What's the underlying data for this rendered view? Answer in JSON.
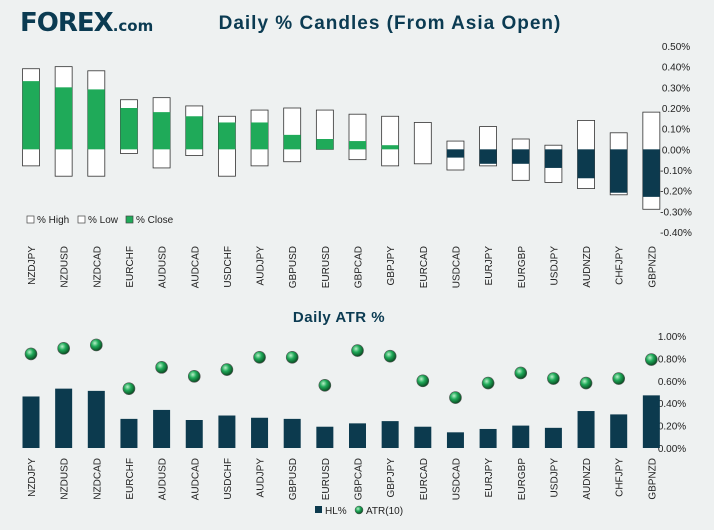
{
  "brand": {
    "name": "FOREX",
    "suffix": ".com",
    "color": "#0b3b52",
    "accent": "#2aa84a"
  },
  "chart_data": [
    {
      "type": "candlestick",
      "title": "Daily % Candles (From Asia Open)",
      "categories": [
        "NZDJPY",
        "NZDUSD",
        "NZDCAD",
        "EURCHF",
        "AUDUSD",
        "AUDCAD",
        "USDCHF",
        "AUDJPY",
        "GBPUSD",
        "EURUSD",
        "GBPCAD",
        "GBPJPY",
        "EURCAD",
        "USDCAD",
        "EURJPY",
        "EURGBP",
        "USDJPY",
        "AUDNZD",
        "CHFJPY",
        "GBPNZD"
      ],
      "series": [
        {
          "name": "% High",
          "values": [
            0.39,
            0.4,
            0.38,
            0.24,
            0.25,
            0.21,
            0.16,
            0.19,
            0.2,
            0.19,
            0.17,
            0.16,
            0.13,
            0.04,
            0.11,
            0.05,
            0.02,
            0.14,
            0.08,
            0.18
          ]
        },
        {
          "name": "% Low",
          "values": [
            -0.08,
            -0.13,
            -0.13,
            -0.02,
            -0.09,
            -0.03,
            -0.13,
            -0.08,
            -0.06,
            0.0,
            -0.05,
            -0.08,
            -0.07,
            -0.1,
            -0.08,
            -0.15,
            -0.16,
            -0.19,
            -0.22,
            -0.29
          ]
        },
        {
          "name": "% Close",
          "values": [
            0.33,
            0.3,
            0.29,
            0.2,
            0.18,
            0.16,
            0.13,
            0.13,
            0.07,
            0.05,
            0.04,
            0.02,
            0.0,
            -0.04,
            -0.07,
            -0.07,
            -0.09,
            -0.14,
            -0.21,
            -0.23
          ]
        }
      ],
      "y_ticks": [
        "0.50%",
        "0.40%",
        "0.30%",
        "0.20%",
        "0.10%",
        "0.00%",
        "-0.10%",
        "-0.20%",
        "-0.30%",
        "-0.40%"
      ],
      "ylim": [
        -0.4,
        0.5
      ],
      "legend": [
        "% High",
        "% Low",
        "% Close"
      ],
      "legend_position": "bottom-left",
      "colors": {
        "positive": "#1faa59",
        "negative": "#0c3a4e",
        "range": "#ffffff",
        "outline": "#333333"
      }
    },
    {
      "type": "bar+scatter",
      "title": "Daily ATR %",
      "categories": [
        "NZDJPY",
        "NZDUSD",
        "NZDCAD",
        "EURCHF",
        "AUDUSD",
        "AUDCAD",
        "USDCHF",
        "AUDJPY",
        "GBPUSD",
        "EURUSD",
        "GBPCAD",
        "GBPJPY",
        "EURCAD",
        "USDCAD",
        "EURJPY",
        "EURGBP",
        "USDJPY",
        "AUDNZD",
        "CHFJPY",
        "GBPNZD"
      ],
      "series": [
        {
          "name": "HL%",
          "type": "bar",
          "values": [
            0.46,
            0.53,
            0.51,
            0.26,
            0.34,
            0.25,
            0.29,
            0.27,
            0.26,
            0.19,
            0.22,
            0.24,
            0.19,
            0.14,
            0.17,
            0.2,
            0.18,
            0.33,
            0.3,
            0.47
          ]
        },
        {
          "name": "ATR(10)",
          "type": "scatter",
          "values": [
            0.84,
            0.89,
            0.92,
            0.53,
            0.72,
            0.64,
            0.7,
            0.81,
            0.81,
            0.56,
            0.87,
            0.82,
            0.6,
            0.45,
            0.58,
            0.67,
            0.62,
            0.58,
            0.62,
            0.79
          ]
        }
      ],
      "y_ticks": [
        "1.00%",
        "0.80%",
        "0.60%",
        "0.40%",
        "0.20%",
        "0.00%"
      ],
      "ylim": [
        0,
        1.0
      ],
      "legend": [
        "HL%",
        "ATR(10)"
      ],
      "legend_position": "bottom-center",
      "colors": {
        "bar": "#0c3a4e",
        "dot": "#1faa59"
      }
    }
  ]
}
